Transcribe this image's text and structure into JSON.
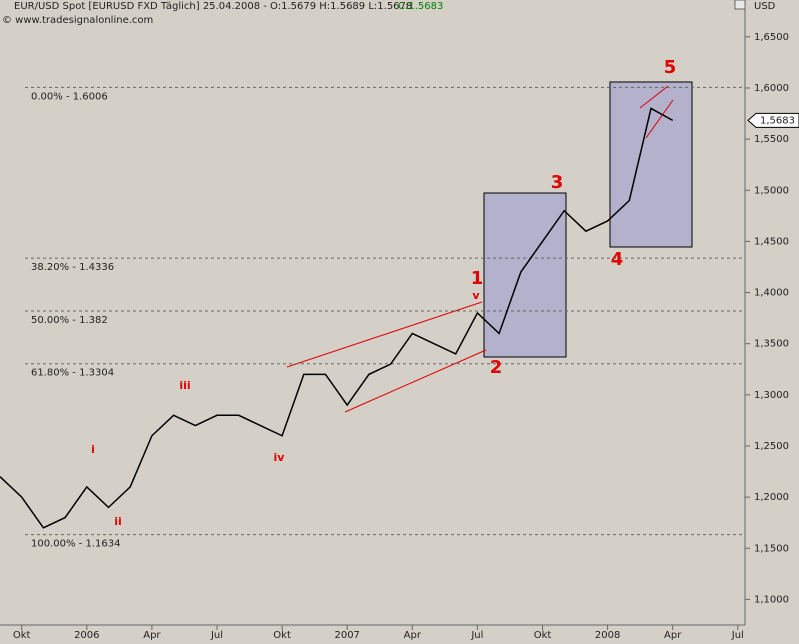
{
  "chart_data": {
    "type": "line",
    "title": "EUR/USD Spot [EURUSD FXD  Täglich] 25.04.2008 - O:1.5679 H:1.5689 L:1.5678",
    "close_label": "C:1.5683",
    "subtitle": "© www.tradesignalonline.com",
    "y_axis_label": "USD",
    "last_price": {
      "value": 1.5683,
      "label": "1,5683"
    },
    "categories": [
      null,
      "Okt",
      null,
      null,
      "2006",
      null,
      null,
      "Apr",
      null,
      null,
      "Jul",
      null,
      null,
      "Okt",
      null,
      null,
      "2007",
      null,
      null,
      "Apr",
      null,
      null,
      "Jul",
      null,
      null,
      "Okt",
      null,
      null,
      "2008",
      null,
      null,
      "Apr",
      null,
      null,
      "Jul",
      null
    ],
    "series": [
      {
        "name": "EUR/USD",
        "color": "#000000",
        "values": [
          1.22,
          1.2,
          1.17,
          1.18,
          1.21,
          1.19,
          1.21,
          1.26,
          1.28,
          1.27,
          1.28,
          1.28,
          1.27,
          1.26,
          1.32,
          1.32,
          1.29,
          1.32,
          1.33,
          1.36,
          1.35,
          1.34,
          1.38,
          1.36,
          1.42,
          1.45,
          1.48,
          1.46,
          1.47,
          1.49,
          1.58,
          1.5683,
          null,
          null,
          null,
          null
        ]
      }
    ],
    "ylim": [
      1.075,
      1.686
    ],
    "yticks": [
      {
        "value": 1.1,
        "label": "1,1000"
      },
      {
        "value": 1.15,
        "label": "1,1500"
      },
      {
        "value": 1.2,
        "label": "1,2000"
      },
      {
        "value": 1.25,
        "label": "1,2500"
      },
      {
        "value": 1.3,
        "label": "1,3000"
      },
      {
        "value": 1.35,
        "label": "1,3500"
      },
      {
        "value": 1.4,
        "label": "1,4000"
      },
      {
        "value": 1.45,
        "label": "1,4500"
      },
      {
        "value": 1.5,
        "label": "1,5000"
      },
      {
        "value": 1.55,
        "label": "1,5500"
      },
      {
        "value": 1.6,
        "label": "1,6000"
      },
      {
        "value": 1.65,
        "label": "1,6500"
      }
    ],
    "fib_levels": [
      {
        "value": 1.6006,
        "label": "0.00% - 1.6006"
      },
      {
        "value": 1.4336,
        "label": "38.20% - 1.4336"
      },
      {
        "value": 1.382,
        "label": "50.00% - 1.382"
      },
      {
        "value": 1.3304,
        "label": "61.80% - 1.3304"
      },
      {
        "value": 1.1634,
        "label": "100.00% - 1.1634"
      }
    ],
    "annotations": [
      "i",
      "ii",
      "iii",
      "iv",
      "v",
      "1",
      "2",
      "3",
      "4",
      "5"
    ]
  }
}
